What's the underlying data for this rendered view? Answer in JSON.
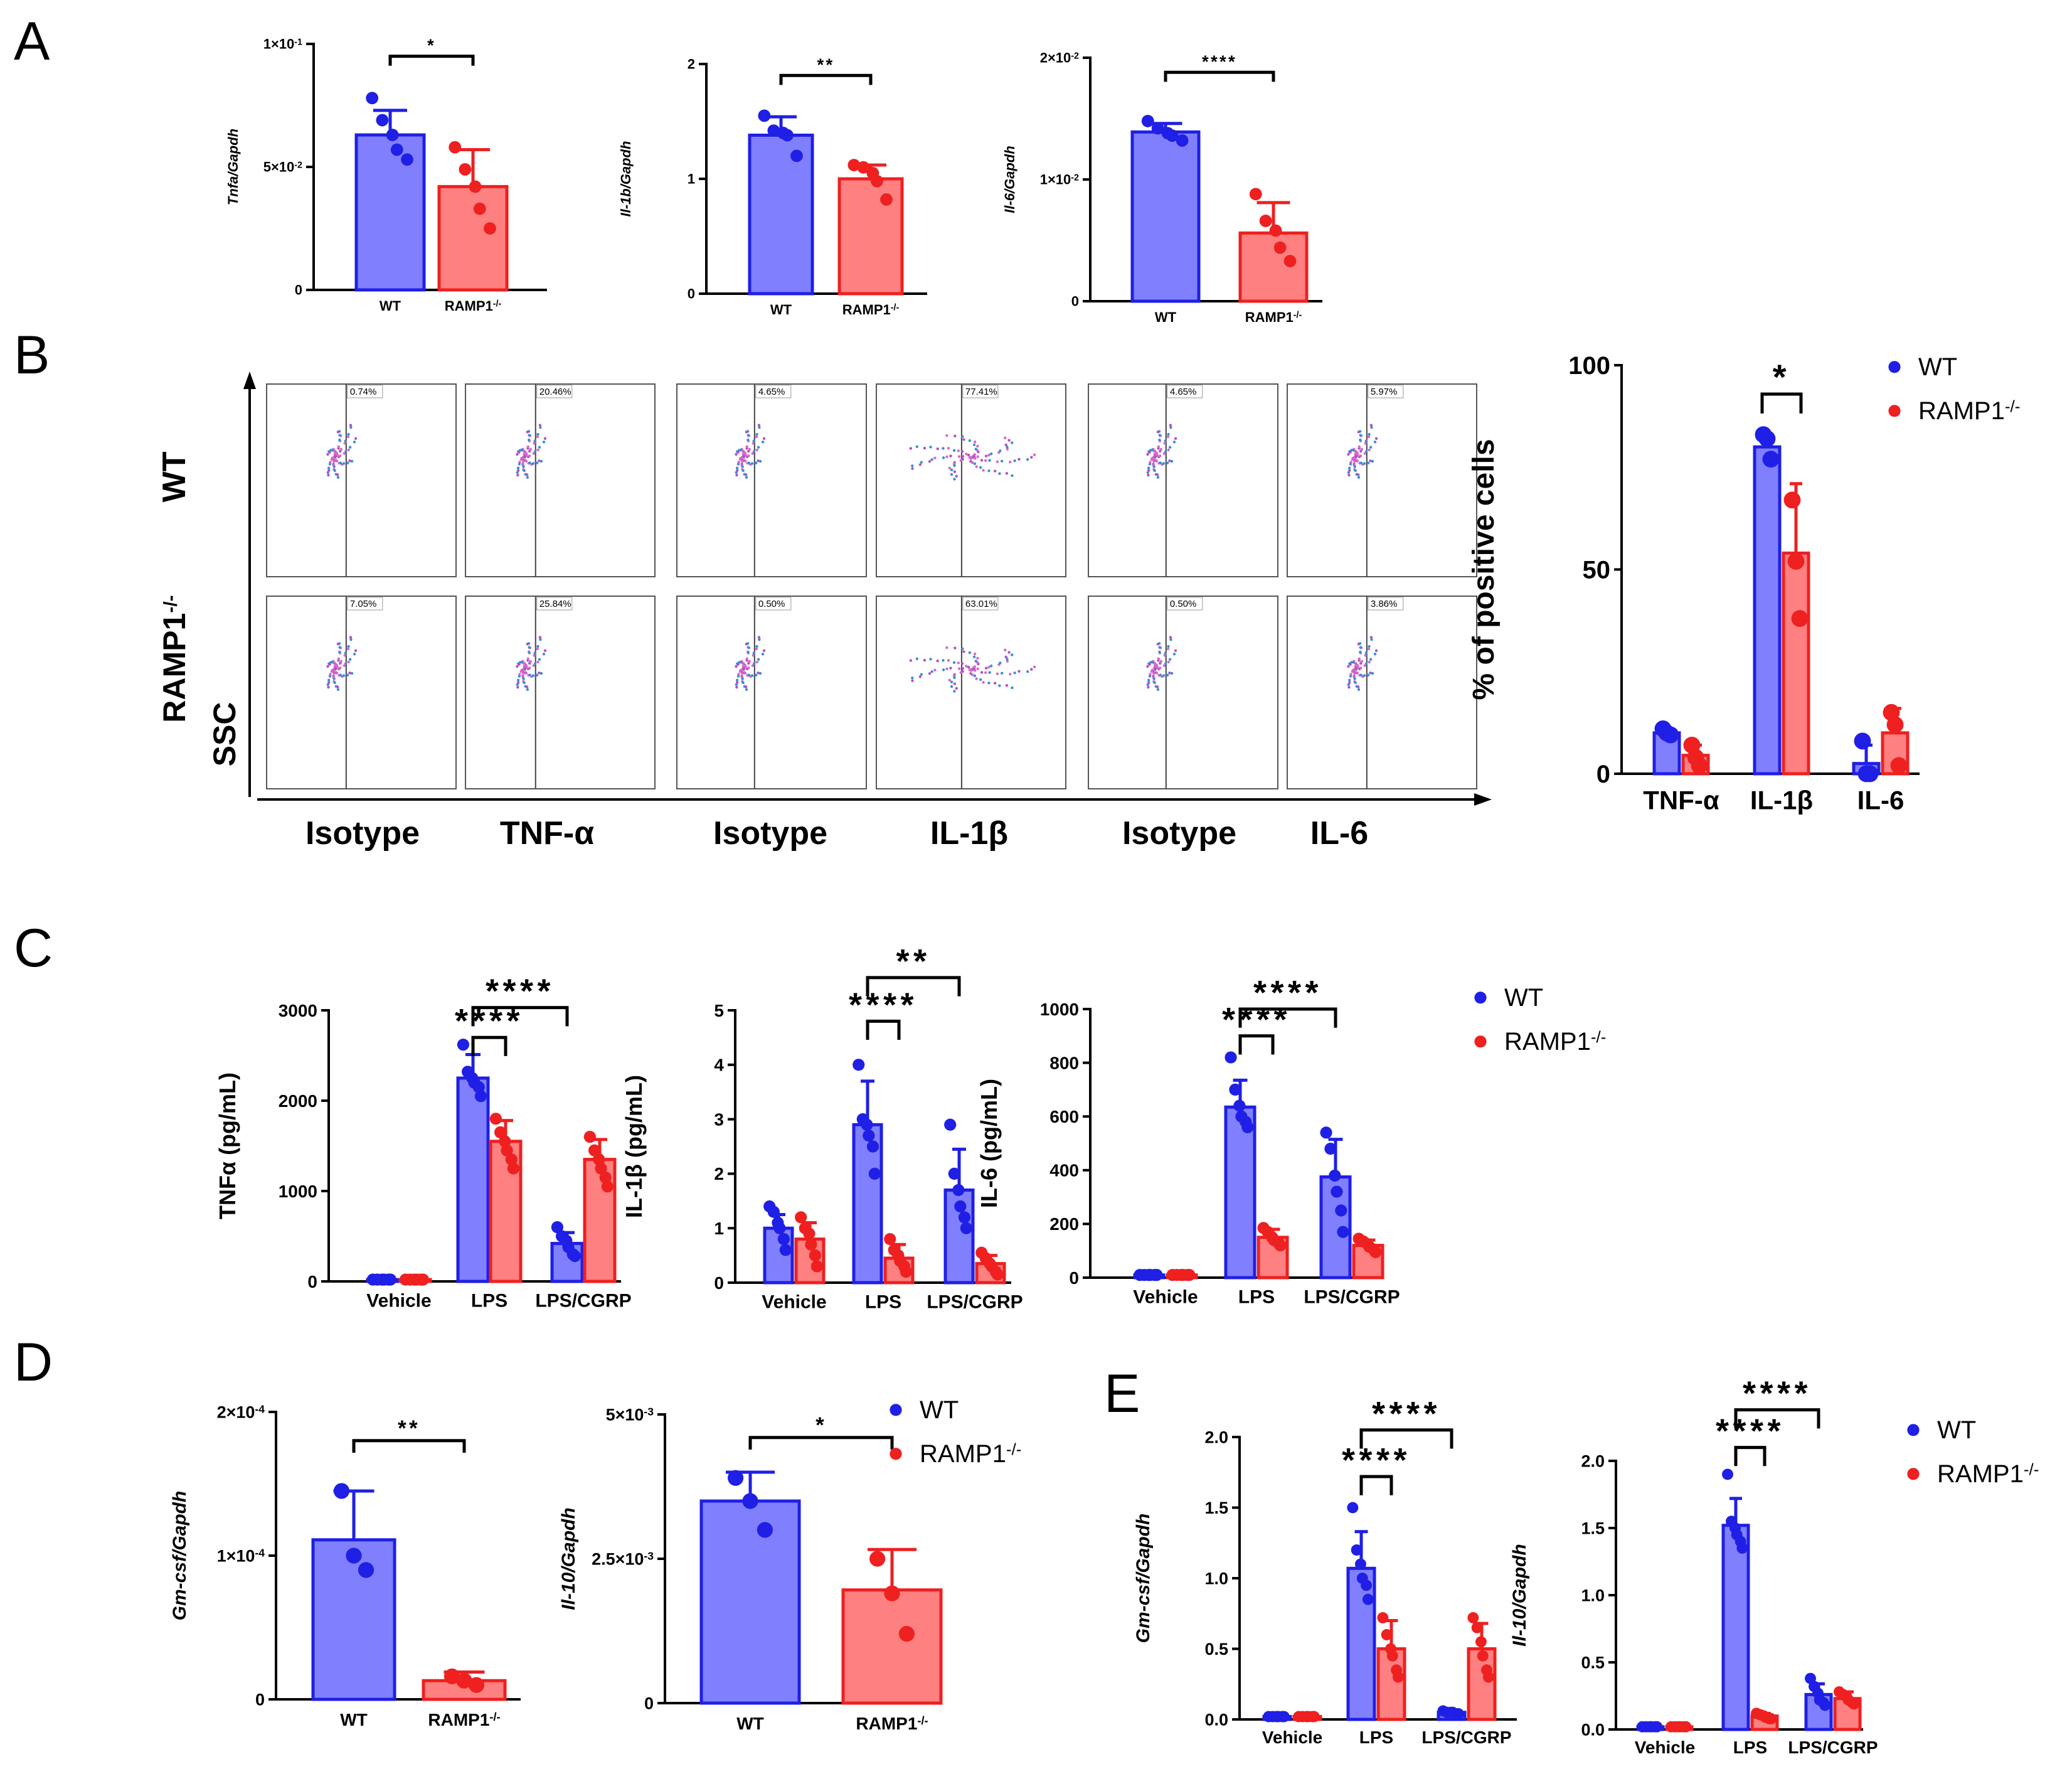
{
  "colors": {
    "wt": "#1f1fe6",
    "wt_fill": "#8080ff",
    "ko": "#ee2020",
    "ko_fill": "#ff8080",
    "axis": "#000000"
  },
  "panels": {
    "a": "A",
    "b": "B",
    "c": "C",
    "d": "D",
    "e": "E"
  },
  "legend": {
    "wt": "WT",
    "ko": "RAMP1",
    "ko_sup": "-/-"
  },
  "flow": {
    "row_labels": [
      "WT",
      "RAMP1",
      "-/-"
    ],
    "y_axis": "SSC",
    "columns": [
      "Isotype",
      "TNF-α",
      "Isotype",
      "IL-1β",
      "Isotype",
      "IL-6"
    ],
    "wt_pcts": [
      "0.74%",
      "20.46%",
      "4.65%",
      "77.41%",
      "4.65%",
      "5.97%"
    ],
    "ko_pcts": [
      "7.05%",
      "25.84%",
      "0.50%",
      "63.01%",
      "0.50%",
      "3.86%"
    ]
  },
  "chart_data": [
    {
      "id": "A1",
      "type": "bar",
      "ylabel": "Tnfa/Gapdh",
      "categories": [
        "WT",
        "RAMP1"
      ],
      "ko_sup": "-/-",
      "ylim": [
        0,
        0.1
      ],
      "ticks": [
        "0",
        "5×10",
        "1×10"
      ],
      "tick_sup": [
        "",
        "-2",
        "-1"
      ],
      "tick_values": [
        0,
        0.05,
        0.1
      ],
      "values": [
        0.063,
        0.042
      ],
      "errors": [
        0.01,
        0.015
      ],
      "points": [
        [
          0.078,
          0.069,
          0.063,
          0.057,
          0.053
        ],
        [
          0.058,
          0.049,
          0.042,
          0.033,
          0.025
        ]
      ],
      "sig": [
        {
          "from": 0,
          "to": 1,
          "label": "*",
          "y": 0.095
        }
      ]
    },
    {
      "id": "A2",
      "type": "bar",
      "ylabel": "Il-1b/Gapdh",
      "categories": [
        "WT",
        "RAMP1"
      ],
      "ko_sup": "-/-",
      "ylim": [
        0,
        2
      ],
      "ticks": [
        "0",
        "1",
        "2"
      ],
      "tick_sup": [
        "",
        "",
        ""
      ],
      "tick_values": [
        0,
        1,
        2
      ],
      "values": [
        1.38,
        1.0
      ],
      "errors": [
        0.16,
        0.12
      ],
      "points": [
        [
          1.55,
          1.42,
          1.4,
          1.38,
          1.2
        ],
        [
          1.12,
          1.1,
          1.05,
          0.98,
          0.82
        ]
      ],
      "sig": [
        {
          "from": 0,
          "to": 1,
          "label": "**",
          "y": 1.9
        }
      ]
    },
    {
      "id": "A3",
      "type": "bar",
      "ylabel": "Il-6/Gapdh",
      "categories": [
        "WT",
        "RAMP1"
      ],
      "ko_sup": "-/-",
      "ylim": [
        0,
        0.02
      ],
      "ticks": [
        "0",
        "1×10",
        "2×10"
      ],
      "tick_sup": [
        "",
        "-2",
        "-2"
      ],
      "tick_values": [
        0,
        0.01,
        0.02
      ],
      "values": [
        0.0139,
        0.0056
      ],
      "errors": [
        0.0007,
        0.0025
      ],
      "points": [
        [
          0.0148,
          0.0142,
          0.0138,
          0.0136,
          0.0132
        ],
        [
          0.0088,
          0.0066,
          0.0058,
          0.0044,
          0.0033
        ]
      ],
      "sig": [
        {
          "from": 0,
          "to": 1,
          "label": "****",
          "y": 0.0188
        }
      ]
    },
    {
      "id": "B",
      "type": "bar",
      "ylabel": "% of positive cells",
      "categories": [
        "TNF-α",
        "IL-1β",
        "IL-6"
      ],
      "series": [
        {
          "name": "WT",
          "values": [
            10,
            80,
            2.5
          ],
          "errors": [
            1,
            3,
            4.5
          ],
          "points": [
            [
              11,
              10,
              9.5
            ],
            [
              83,
              82,
              77
            ],
            [
              8,
              0,
              0
            ]
          ]
        },
        {
          "name": "RAMP1",
          "values": [
            4.5,
            54,
            10
          ],
          "errors": [
            2.5,
            17,
            6
          ],
          "points": [
            [
              7,
              4,
              2
            ],
            [
              67,
              52,
              38
            ],
            [
              15,
              12,
              2
            ]
          ]
        }
      ],
      "ylim": [
        0,
        100
      ],
      "ticks": [
        "0",
        "50",
        "100"
      ],
      "tick_values": [
        0,
        50,
        100
      ],
      "sig": [
        {
          "group": 1,
          "label": "*",
          "y": 96
        }
      ]
    },
    {
      "id": "C1",
      "type": "bar",
      "ylabel": "TNFα (pg/mL)",
      "categories": [
        "Vehicle",
        "LPS",
        "LPS/CGRP"
      ],
      "series": [
        {
          "name": "WT",
          "values": [
            20,
            2250,
            420
          ],
          "errors": [
            5,
            260,
            120
          ],
          "points": [
            [
              20,
              20,
              20,
              20,
              20,
              20
            ],
            [
              2620,
              2320,
              2250,
              2200,
              2150,
              2050
            ],
            [
              600,
              500,
              450,
              380,
              300,
              280
            ]
          ]
        },
        {
          "name": "RAMP1",
          "values": [
            20,
            1550,
            1350
          ],
          "errors": [
            5,
            230,
            220
          ],
          "points": [
            [
              20,
              20,
              20,
              20,
              20,
              20
            ],
            [
              1800,
              1650,
              1550,
              1450,
              1350,
              1250
            ],
            [
              1600,
              1450,
              1350,
              1250,
              1150,
              1050
            ]
          ]
        }
      ],
      "ylim": [
        0,
        3000
      ],
      "ticks": [
        "0",
        "1000",
        "2000",
        "3000"
      ],
      "tick_values": [
        0,
        1000,
        2000,
        3000
      ],
      "sig": [
        {
          "from": 1,
          "to": 2,
          "label": "****",
          "y": 3030
        },
        {
          "from": 1,
          "to": 1.5,
          "label": "****",
          "y": 2700
        }
      ]
    },
    {
      "id": "C2",
      "type": "bar",
      "ylabel": "IL-1β (pg/mL)",
      "categories": [
        "Vehicle",
        "LPS",
        "LPS/CGRP"
      ],
      "series": [
        {
          "name": "WT",
          "values": [
            1.0,
            2.9,
            1.7
          ],
          "errors": [
            0.25,
            0.8,
            0.75
          ],
          "points": [
            [
              1.4,
              1.3,
              1.1,
              1.0,
              0.8,
              0.6
            ],
            [
              4.0,
              3.0,
              2.9,
              2.7,
              2.5,
              2.0
            ],
            [
              2.9,
              2.0,
              1.7,
              1.4,
              1.2,
              1.0
            ]
          ]
        },
        {
          "name": "RAMP1",
          "values": [
            0.8,
            0.45,
            0.35
          ],
          "errors": [
            0.3,
            0.25,
            0.15
          ],
          "points": [
            [
              1.2,
              1.0,
              0.9,
              0.7,
              0.5,
              0.3
            ],
            [
              0.8,
              0.6,
              0.5,
              0.4,
              0.3,
              0.2
            ],
            [
              0.55,
              0.45,
              0.35,
              0.3,
              0.2,
              0.15
            ]
          ]
        }
      ],
      "ylim": [
        0,
        5
      ],
      "ticks": [
        "0",
        "1",
        "2",
        "3",
        "4",
        "5"
      ],
      "tick_values": [
        0,
        1,
        2,
        3,
        4,
        5
      ],
      "sig": [
        {
          "from": 1,
          "to": 2,
          "label": "**",
          "y": 5.6
        },
        {
          "from": 1,
          "to": 1.5,
          "label": "****",
          "y": 4.8
        }
      ]
    },
    {
      "id": "C3",
      "type": "bar",
      "ylabel": "IL-6 (pg/mL)",
      "categories": [
        "Vehicle",
        "LPS",
        "LPS/CGRP"
      ],
      "series": [
        {
          "name": "WT",
          "values": [
            10,
            635,
            375
          ],
          "errors": [
            3,
            100,
            140
          ],
          "points": [
            [
              10,
              10,
              10,
              10,
              10,
              10
            ],
            [
              820,
              700,
              640,
              600,
              580,
              560
            ],
            [
              540,
              480,
              380,
              320,
              250,
              170
            ]
          ]
        },
        {
          "name": "RAMP1",
          "values": [
            10,
            150,
            120
          ],
          "errors": [
            3,
            30,
            20
          ],
          "points": [
            [
              10,
              10,
              10,
              10,
              10,
              10
            ],
            [
              185,
              170,
              150,
              140,
              130,
              120
            ],
            [
              145,
              135,
              125,
              115,
              105,
              95
            ]
          ]
        }
      ],
      "ylim": [
        0,
        1000
      ],
      "ticks": [
        "0",
        "200",
        "400",
        "600",
        "800",
        "1000"
      ],
      "tick_values": [
        0,
        200,
        400,
        600,
        800,
        1000
      ],
      "sig": [
        {
          "from": 1,
          "to": 2,
          "label": "****",
          "y": 1000
        },
        {
          "from": 1,
          "to": 1.5,
          "label": "****",
          "y": 900
        }
      ]
    },
    {
      "id": "D1",
      "type": "bar",
      "ylabel": "Gm-csf/Gapdh",
      "categories": [
        "WT",
        "RAMP1"
      ],
      "ko_sup": "-/-",
      "ylim": [
        0,
        0.0002
      ],
      "ticks": [
        "0",
        "1×10",
        "2×10"
      ],
      "tick_sup": [
        "",
        "-4",
        "-4"
      ],
      "tick_values": [
        0,
        0.0001,
        0.0002
      ],
      "values": [
        0.000111,
        1.3e-05
      ],
      "errors": [
        3.4e-05,
        6e-06
      ],
      "points": [
        [
          0.000145,
          0.0001,
          9e-05
        ],
        [
          1.6e-05,
          1.3e-05,
          1e-05
        ]
      ],
      "sig": [
        {
          "from": 0,
          "to": 1,
          "label": "**",
          "y": 0.00018
        }
      ]
    },
    {
      "id": "D2",
      "type": "bar",
      "ylabel": "Il-10/Gapdh",
      "categories": [
        "WT",
        "RAMP1"
      ],
      "ko_sup": "-/-",
      "ylim": [
        0,
        0.005
      ],
      "ticks": [
        "0",
        "2.5×10",
        "5×10"
      ],
      "tick_sup": [
        "",
        "-3",
        "-3"
      ],
      "tick_values": [
        0,
        0.0025,
        0.005
      ],
      "values": [
        0.0035,
        0.00196
      ],
      "errors": [
        0.0005,
        0.0007
      ],
      "points": [
        [
          0.0039,
          0.0035,
          0.003
        ],
        [
          0.0025,
          0.0019,
          0.0012
        ]
      ],
      "sig": [
        {
          "from": 0,
          "to": 1,
          "label": "*",
          "y": 0.0046
        }
      ]
    },
    {
      "id": "E1",
      "type": "bar",
      "ylabel": "Gm-csf/Gapdh",
      "categories": [
        "Vehicle",
        "LPS",
        "LPS/CGRP"
      ],
      "series": [
        {
          "name": "WT",
          "values": [
            0.02,
            1.07,
            0.05
          ],
          "errors": [
            0.005,
            0.26,
            0.015
          ],
          "points": [
            [
              0.02,
              0.02,
              0.02,
              0.02,
              0.02,
              0.02
            ],
            [
              1.5,
              1.2,
              1.1,
              1.0,
              0.95,
              0.85
            ],
            [
              0.06,
              0.05,
              0.05,
              0.05,
              0.04,
              0.04
            ]
          ]
        },
        {
          "name": "RAMP1",
          "values": [
            0.02,
            0.5,
            0.5
          ],
          "errors": [
            0.005,
            0.2,
            0.18
          ],
          "points": [
            [
              0.02,
              0.02,
              0.02,
              0.02,
              0.02,
              0.02
            ],
            [
              0.72,
              0.6,
              0.5,
              0.45,
              0.35,
              0.3
            ],
            [
              0.72,
              0.65,
              0.55,
              0.45,
              0.35,
              0.3
            ]
          ]
        }
      ],
      "ylim": [
        0,
        2.0
      ],
      "ticks": [
        "0.0",
        "0.5",
        "1.0",
        "1.5",
        "2.0"
      ],
      "tick_values": [
        0,
        0.5,
        1.0,
        1.5,
        2.0
      ],
      "sig": [
        {
          "from": 1,
          "to": 2,
          "label": "****",
          "y": 2.05
        },
        {
          "from": 1,
          "to": 1.5,
          "label": "****",
          "y": 1.72
        }
      ]
    },
    {
      "id": "E2",
      "type": "bar",
      "ylabel": "Il-10/Gapdh",
      "categories": [
        "Vehicle",
        "LPS",
        "LPS/CGRP"
      ],
      "series": [
        {
          "name": "WT",
          "values": [
            0.02,
            1.52,
            0.26
          ],
          "errors": [
            0.005,
            0.2,
            0.08
          ],
          "points": [
            [
              0.02,
              0.02,
              0.02,
              0.02,
              0.02,
              0.02
            ],
            [
              1.9,
              1.55,
              1.5,
              1.45,
              1.4,
              1.35
            ],
            [
              0.38,
              0.32,
              0.27,
              0.22,
              0.2,
              0.18
            ]
          ]
        },
        {
          "name": "RAMP1",
          "values": [
            0.02,
            0.1,
            0.23
          ],
          "errors": [
            0.005,
            0.02,
            0.05
          ],
          "points": [
            [
              0.02,
              0.02,
              0.02,
              0.02,
              0.02,
              0.02
            ],
            [
              0.12,
              0.11,
              0.1,
              0.09,
              0.08,
              0.08
            ],
            [
              0.28,
              0.26,
              0.24,
              0.22,
              0.2,
              0.19
            ]
          ]
        }
      ],
      "ylim": [
        0,
        2.0
      ],
      "ticks": [
        "0.0",
        "0.5",
        "1.0",
        "1.5",
        "2.0"
      ],
      "tick_values": [
        0,
        0.5,
        1.0,
        1.5,
        2.0
      ],
      "sig": [
        {
          "from": 1,
          "to": 2,
          "label": "****",
          "y": 2.38
        },
        {
          "from": 1,
          "to": 1.5,
          "label": "****",
          "y": 2.1
        }
      ]
    }
  ]
}
